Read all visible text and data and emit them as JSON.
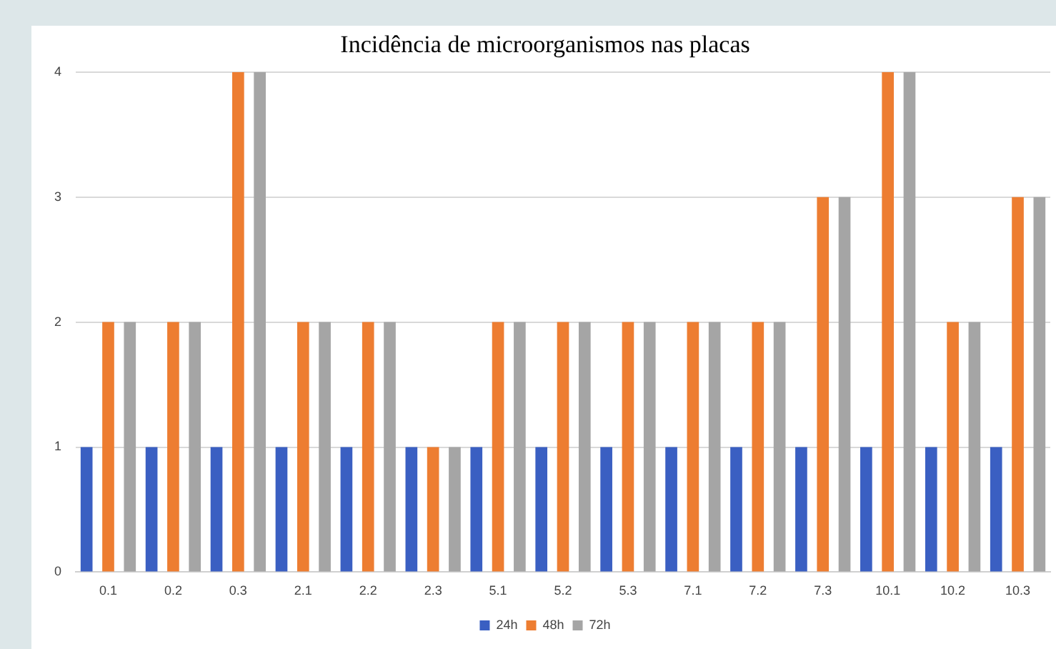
{
  "chart_data": {
    "type": "bar",
    "title": "Incidência de microorganismos nas placas",
    "categories": [
      "0.1",
      "0.2",
      "0.3",
      "2.1",
      "2.2",
      "2.3",
      "5.1",
      "5.2",
      "5.3",
      "7.1",
      "7.2",
      "7.3",
      "10.1",
      "10.2",
      "10.3"
    ],
    "series": [
      {
        "name": "24h",
        "color": "#3a5fc2",
        "values": [
          1,
          1,
          1,
          1,
          1,
          1,
          1,
          1,
          1,
          1,
          1,
          1,
          1,
          1,
          1
        ]
      },
      {
        "name": "48h",
        "color": "#ed7d31",
        "values": [
          2,
          2,
          4,
          2,
          2,
          1,
          2,
          2,
          2,
          2,
          2,
          3,
          4,
          2,
          3
        ]
      },
      {
        "name": "72h",
        "color": "#a5a5a5",
        "values": [
          2,
          2,
          4,
          2,
          2,
          1,
          2,
          2,
          2,
          2,
          2,
          3,
          4,
          2,
          3
        ]
      }
    ],
    "ylim": [
      0,
      4
    ],
    "yticks": [
      0,
      1,
      2,
      3,
      4
    ],
    "grid": "y",
    "legend": "bottom"
  }
}
